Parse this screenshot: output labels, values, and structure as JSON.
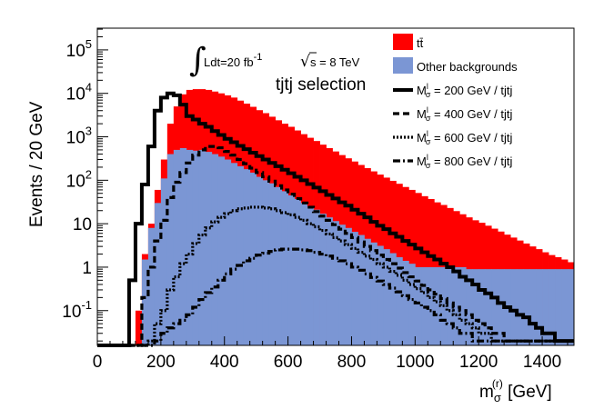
{
  "chart_data": {
    "type": "histogram",
    "ylabel": "Events / 20 GeV",
    "xlabel_main": "m",
    "xlabel_sub": "σ",
    "xlabel_sup": "(r)",
    "xlabel_unit": " [GeV]",
    "xlim": [
      0,
      1500
    ],
    "ylim_log10": [
      -1.8,
      5.5
    ],
    "bin_width": 20,
    "bin_start": 0,
    "xticks": [
      "0",
      "200",
      "400",
      "600",
      "800",
      "1000",
      "1200",
      "1400"
    ],
    "yticks": [
      {
        "base": "10",
        "exp": "5",
        "value": 100000
      },
      {
        "base": "10",
        "exp": "4",
        "value": 10000
      },
      {
        "base": "10",
        "exp": "3",
        "value": 1000
      },
      {
        "base": "10",
        "exp": "2",
        "value": 100
      },
      {
        "base": "",
        "exp": "",
        "label": "10",
        "value": 10
      },
      {
        "base": "",
        "exp": "",
        "label": "1",
        "value": 1
      },
      {
        "base": "10",
        "exp": "-1",
        "value": 0.1
      }
    ],
    "annotations": {
      "lumi_text": "Ldt=20 fb",
      "lumi_exp": "-1",
      "energy_text": "s = 8 TeV",
      "selection": "tjtj selection"
    },
    "legend": [
      {
        "label": "tt̄",
        "style": "fill",
        "color": "#ff0000"
      },
      {
        "label": "Other backgrounds",
        "style": "fill",
        "color": "#7b96d4"
      },
      {
        "label": "M",
        "sub": "σ",
        "sup": "l",
        "tail": " = 200 GeV / tjtj",
        "style": "solid"
      },
      {
        "label": "M",
        "sub": "σ",
        "sup": "l",
        "tail": " = 400 GeV / tjtj",
        "style": "dashed"
      },
      {
        "label": "M",
        "sub": "σ",
        "sup": "l",
        "tail": " = 600 GeV / tjtj",
        "style": "dotted"
      },
      {
        "label": "M",
        "sub": "σ",
        "sup": "l",
        "tail": " = 800 GeV / tjtj",
        "style": "dashdot"
      }
    ],
    "series": [
      {
        "name": "tt̄ (stacked total)",
        "color": "#ff0000",
        "values": [
          0,
          0,
          0,
          0,
          0,
          0,
          0.1,
          2,
          10,
          60,
          300,
          2000,
          5000,
          9500,
          12000,
          12500,
          12500,
          12000,
          11000,
          10000,
          9000,
          8000,
          6800,
          5800,
          4900,
          4100,
          3500,
          2900,
          2400,
          2000,
          1700,
          1400,
          1150,
          950,
          800,
          660,
          550,
          460,
          380,
          320,
          270,
          225,
          190,
          160,
          135,
          115,
          97,
          83,
          70,
          60,
          51,
          43,
          37,
          31,
          27,
          23,
          19.5,
          16.5,
          14,
          12,
          10.5,
          9,
          7.7,
          6.6,
          5.6,
          4.8,
          4.1,
          3.5,
          3.0,
          2.6,
          2.2,
          1.9,
          1.7,
          1.5,
          1.3
        ]
      },
      {
        "name": "Other backgrounds",
        "color": "#7b96d4",
        "values": [
          0,
          0,
          0,
          0,
          0,
          0,
          0,
          1.5,
          8,
          30,
          110,
          400,
          500,
          550,
          500,
          480,
          500,
          450,
          400,
          350,
          300,
          250,
          210,
          180,
          150,
          120,
          100,
          85,
          70,
          56,
          45,
          37,
          30,
          25,
          21,
          17,
          14,
          11.5,
          9.5,
          8,
          6.5,
          5.5,
          4.5,
          3.7,
          3.1,
          2.6,
          2.1,
          1.7,
          1.4,
          1.2,
          1.0,
          1.0,
          1.0,
          1.0,
          1.0,
          1.0,
          1.0,
          1.0,
          0.9,
          0.9,
          0.9,
          0.9,
          0.9,
          0.9,
          0.9,
          0.9,
          0.9,
          0.9,
          0.9,
          0.9,
          0.9,
          0.9,
          0.9,
          0.9,
          0.9
        ]
      },
      {
        "name": "M = 200 GeV / tjtj",
        "style": "solid",
        "values": [
          0,
          0,
          0,
          0,
          0,
          0.5,
          10,
          80,
          600,
          4000,
          8000,
          10000,
          9000,
          5500,
          3000,
          2500,
          2000,
          1700,
          1350,
          1100,
          900,
          750,
          620,
          520,
          430,
          360,
          300,
          250,
          210,
          175,
          145,
          120,
          100,
          82,
          68,
          56,
          46,
          38,
          31,
          26,
          21,
          17,
          14,
          11,
          9,
          7.5,
          6,
          5,
          4,
          3.3,
          2.7,
          2.2,
          1.8,
          1.5,
          1.2,
          1.0,
          0.8,
          0.6,
          0.5,
          0.4,
          0.3,
          0.25,
          0.2,
          0.15,
          0.12,
          0.1,
          0.08,
          0.07,
          0.05,
          0.04,
          0.03,
          0.03,
          0.02,
          0.02,
          0.02
        ]
      },
      {
        "name": "M = 400 GeV / tjtj",
        "style": "dashed",
        "values": [
          0,
          0,
          0,
          0,
          0,
          0,
          0,
          0.2,
          1,
          4,
          12,
          40,
          90,
          150,
          250,
          380,
          500,
          600,
          600,
          560,
          460,
          380,
          300,
          240,
          190,
          150,
          120,
          95,
          75,
          60,
          48,
          38,
          30,
          24,
          19,
          15,
          12,
          9.5,
          7.5,
          6,
          4.8,
          3.8,
          3,
          2.4,
          1.9,
          1.5,
          1.2,
          0.95,
          0.75,
          0.6,
          0.48,
          0.38,
          0.3,
          0.24,
          0.19,
          0.15,
          0.12,
          0.1,
          0.08,
          0.06,
          0.05,
          0.04,
          0.03,
          0.03,
          0.02,
          0.02,
          0.02,
          0.02,
          0.02,
          0.02,
          0.02,
          0.02,
          0.02,
          0.02,
          0.02
        ]
      },
      {
        "name": "M = 600 GeV / tjtj",
        "style": "dotted",
        "values": [
          0,
          0,
          0,
          0,
          0,
          0,
          0,
          0,
          0.02,
          0.05,
          0.1,
          0.3,
          0.6,
          1.2,
          2,
          3.5,
          5.5,
          8,
          11,
          14,
          17,
          20,
          22,
          23,
          24,
          24,
          23,
          22,
          20,
          18,
          16,
          14,
          12,
          10,
          8.5,
          7,
          5.8,
          4.8,
          4,
          3.3,
          2.7,
          2.2,
          1.8,
          1.5,
          1.2,
          1.0,
          0.8,
          0.65,
          0.5,
          0.4,
          0.32,
          0.26,
          0.2,
          0.16,
          0.13,
          0.1,
          0.08,
          0.06,
          0.05,
          0.04,
          0.03,
          0.03,
          0.02,
          0.02,
          0.02,
          0.02,
          0.02,
          0.02,
          0.02,
          0.02,
          0.02,
          0.02,
          0.02,
          0.02,
          0.02
        ]
      },
      {
        "name": "M = 800 GeV / tjtj",
        "style": "dashdot",
        "values": [
          0,
          0,
          0,
          0,
          0,
          0,
          0,
          0,
          0,
          0.02,
          0.03,
          0.04,
          0.05,
          0.06,
          0.08,
          0.12,
          0.18,
          0.26,
          0.35,
          0.5,
          0.7,
          0.9,
          1.1,
          1.4,
          1.6,
          1.9,
          2.1,
          2.3,
          2.5,
          2.6,
          2.6,
          2.6,
          2.5,
          2.4,
          2.2,
          2.0,
          1.8,
          1.6,
          1.4,
          1.2,
          1.0,
          0.85,
          0.7,
          0.58,
          0.48,
          0.4,
          0.33,
          0.27,
          0.22,
          0.18,
          0.15,
          0.12,
          0.1,
          0.08,
          0.06,
          0.05,
          0.04,
          0.03,
          0.03,
          0.02,
          0.02,
          0.02,
          0.02,
          0.02,
          0.02,
          0.02,
          0.02,
          0.02,
          0.02,
          0.02,
          0.02,
          0.02,
          0.02,
          0.02,
          0.02
        ]
      }
    ]
  }
}
